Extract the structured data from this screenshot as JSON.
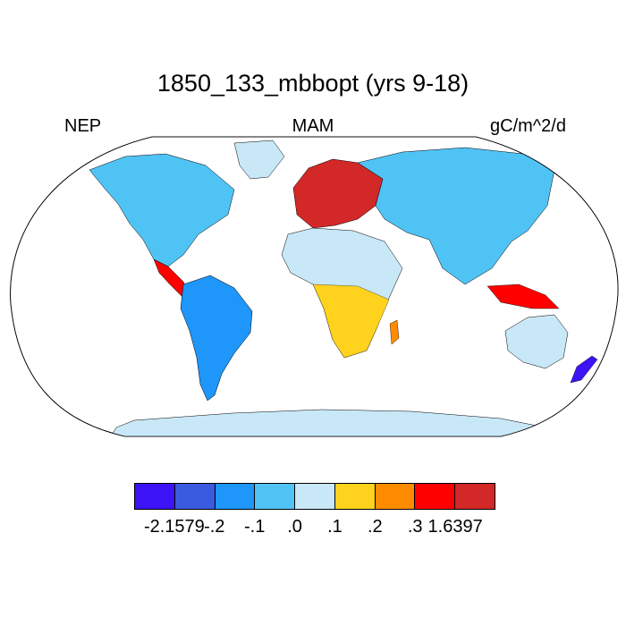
{
  "title": "1850_133_mbbopt (yrs 9-18)",
  "left_label": "NEP",
  "center_label": "MAM",
  "units_label": "gC/m^2/d",
  "colorbar": {
    "colors": [
      "#3c14f5",
      "#3a5ae0",
      "#1e96fa",
      "#50c3f5",
      "#c8e8f8",
      "#ffd21e",
      "#ff8c00",
      "#ff0000",
      "#d22828"
    ],
    "labels": [
      "-2.1579",
      "-.2",
      "-.1",
      ".0",
      ".1",
      ".2",
      ".3",
      "1.6397"
    ]
  },
  "map_palette": {
    "ocean": "#ffffff",
    "ice": "#c8e8f8",
    "coast": "#000000"
  }
}
